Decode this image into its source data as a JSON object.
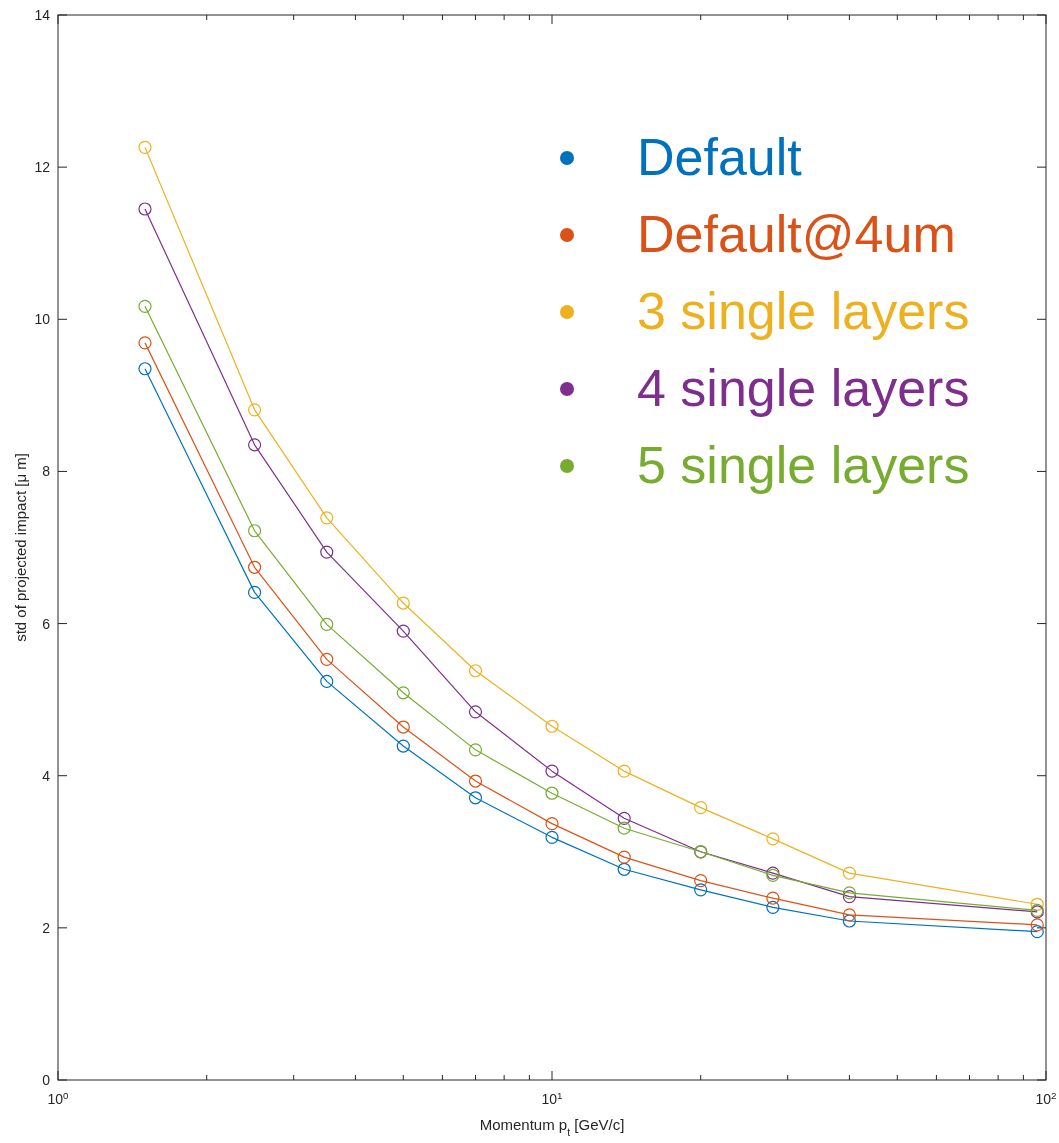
{
  "chart_data": {
    "type": "line",
    "xlabel": "Momentum p$_{t}$ [GeV/c]",
    "ylabel": "std of projected impact [μ m]",
    "log": "x",
    "marker": "circle",
    "line_style": "solid",
    "grid": false,
    "legend": "top right",
    "x": [
      1.5,
      2.5,
      3.5,
      5,
      7,
      10,
      14,
      20,
      28,
      40,
      96
    ],
    "xlim": [
      1,
      100
    ],
    "xticks": [
      {
        "value": 1,
        "label": "10$^{0}$"
      },
      {
        "value": 2,
        "label": null
      },
      {
        "value": 3,
        "label": null
      },
      {
        "value": 4,
        "label": null
      },
      {
        "value": 5,
        "label": null
      },
      {
        "value": 6,
        "label": null
      },
      {
        "value": 7,
        "label": null
      },
      {
        "value": 8,
        "label": null
      },
      {
        "value": 9,
        "label": null
      },
      {
        "value": 10,
        "label": "10$^{1}$"
      },
      {
        "value": 20,
        "label": null
      },
      {
        "value": 30,
        "label": null
      },
      {
        "value": 40,
        "label": null
      },
      {
        "value": 50,
        "label": null
      },
      {
        "value": 60,
        "label": null
      },
      {
        "value": 70,
        "label": null
      },
      {
        "value": 80,
        "label": null
      },
      {
        "value": 90,
        "label": null
      },
      {
        "value": 100,
        "label": "10$^{2}$"
      }
    ],
    "ylim": [
      0,
      14
    ],
    "yticks": [
      0,
      2,
      4,
      6,
      8,
      10,
      12,
      14
    ],
    "series": [
      {
        "name": "Default",
        "color": "#0072bd",
        "values": [
          9.35,
          6.41,
          5.24,
          4.39,
          3.71,
          3.19,
          2.77,
          2.5,
          2.27,
          2.09,
          1.95
        ]
      },
      {
        "name": "Default@4um",
        "color": "#d95319",
        "values": [
          9.69,
          6.74,
          5.53,
          4.64,
          3.93,
          3.37,
          2.93,
          2.62,
          2.39,
          2.17,
          2.04
        ]
      },
      {
        "name": "3 single layers",
        "color": "#edb120",
        "values": [
          12.26,
          8.81,
          7.39,
          6.27,
          5.38,
          4.65,
          4.06,
          3.58,
          3.17,
          2.72,
          2.31
        ]
      },
      {
        "name": "4 single layers",
        "color": "#7e2f8e",
        "values": [
          11.45,
          8.35,
          6.94,
          5.9,
          4.84,
          4.06,
          3.44,
          3.0,
          2.72,
          2.41,
          2.21
        ]
      },
      {
        "name": "5 single layers",
        "color": "#77ac30",
        "values": [
          10.17,
          7.22,
          5.99,
          5.09,
          4.34,
          3.77,
          3.31,
          3.0,
          2.69,
          2.46,
          2.23
        ]
      }
    ]
  }
}
